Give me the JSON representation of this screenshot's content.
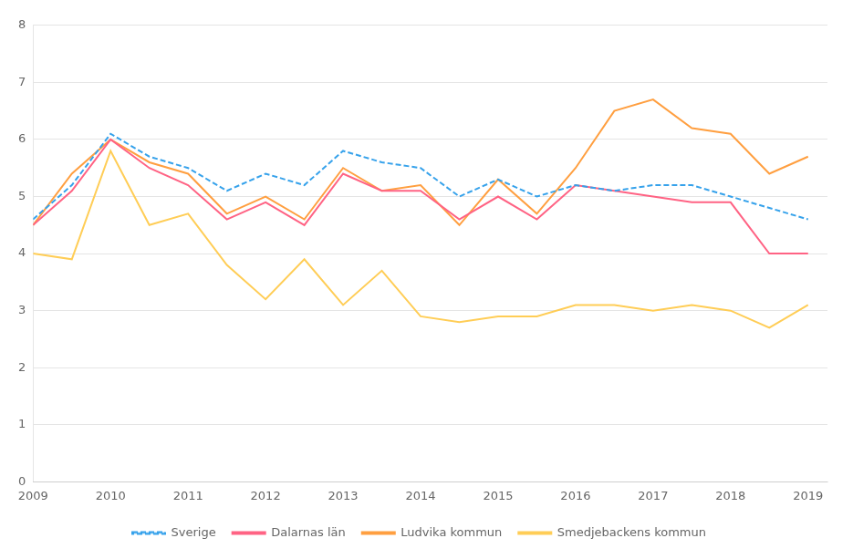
{
  "chart_data": {
    "type": "line",
    "x": [
      2009.0,
      2009.5,
      2010.0,
      2010.5,
      2011.0,
      2011.5,
      2012.0,
      2012.5,
      2013.0,
      2013.5,
      2014.0,
      2014.5,
      2015.0,
      2015.5,
      2016.0,
      2016.5,
      2017.0,
      2017.5,
      2018.0,
      2018.5,
      2019.0
    ],
    "series": [
      {
        "name": "Sverige",
        "line_style": "dashed",
        "values": [
          4.6,
          5.2,
          6.1,
          5.7,
          5.5,
          5.1,
          5.4,
          5.2,
          5.8,
          5.6,
          5.5,
          5.0,
          5.3,
          5.0,
          5.2,
          5.1,
          5.2,
          5.2,
          5.0,
          4.8,
          4.6
        ]
      },
      {
        "name": "Dalarnas län",
        "line_style": "solid",
        "values": [
          4.5,
          5.1,
          6.0,
          5.5,
          5.2,
          4.6,
          4.9,
          4.5,
          5.4,
          5.1,
          5.1,
          4.6,
          5.0,
          4.6,
          5.2,
          5.1,
          5.0,
          4.9,
          4.9,
          4.0,
          4.0
        ]
      },
      {
        "name": "Ludvika kommun",
        "line_style": "solid",
        "values": [
          4.5,
          5.4,
          6.0,
          5.6,
          5.4,
          4.7,
          5.0,
          4.6,
          5.5,
          5.1,
          5.2,
          4.5,
          5.3,
          4.7,
          5.5,
          6.5,
          6.7,
          6.2,
          6.1,
          5.4,
          5.7
        ]
      },
      {
        "name": "Smedjebackens kommun",
        "line_style": "solid",
        "values": [
          4.0,
          3.9,
          5.8,
          4.5,
          4.7,
          3.8,
          3.2,
          3.9,
          3.1,
          3.7,
          2.9,
          2.8,
          2.9,
          2.9,
          3.1,
          3.1,
          3.0,
          3.1,
          3.0,
          2.7,
          3.1
        ]
      }
    ],
    "xlim": [
      2009.0,
      2019.25
    ],
    "xticks": [
      2009,
      2010,
      2011,
      2012,
      2013,
      2014,
      2015,
      2016,
      2017,
      2018,
      2019
    ],
    "ylim": [
      0,
      8
    ],
    "yticks": [
      0,
      1,
      2,
      3,
      4,
      5,
      6,
      7,
      8
    ],
    "grid": "y",
    "legend": "bottom"
  }
}
